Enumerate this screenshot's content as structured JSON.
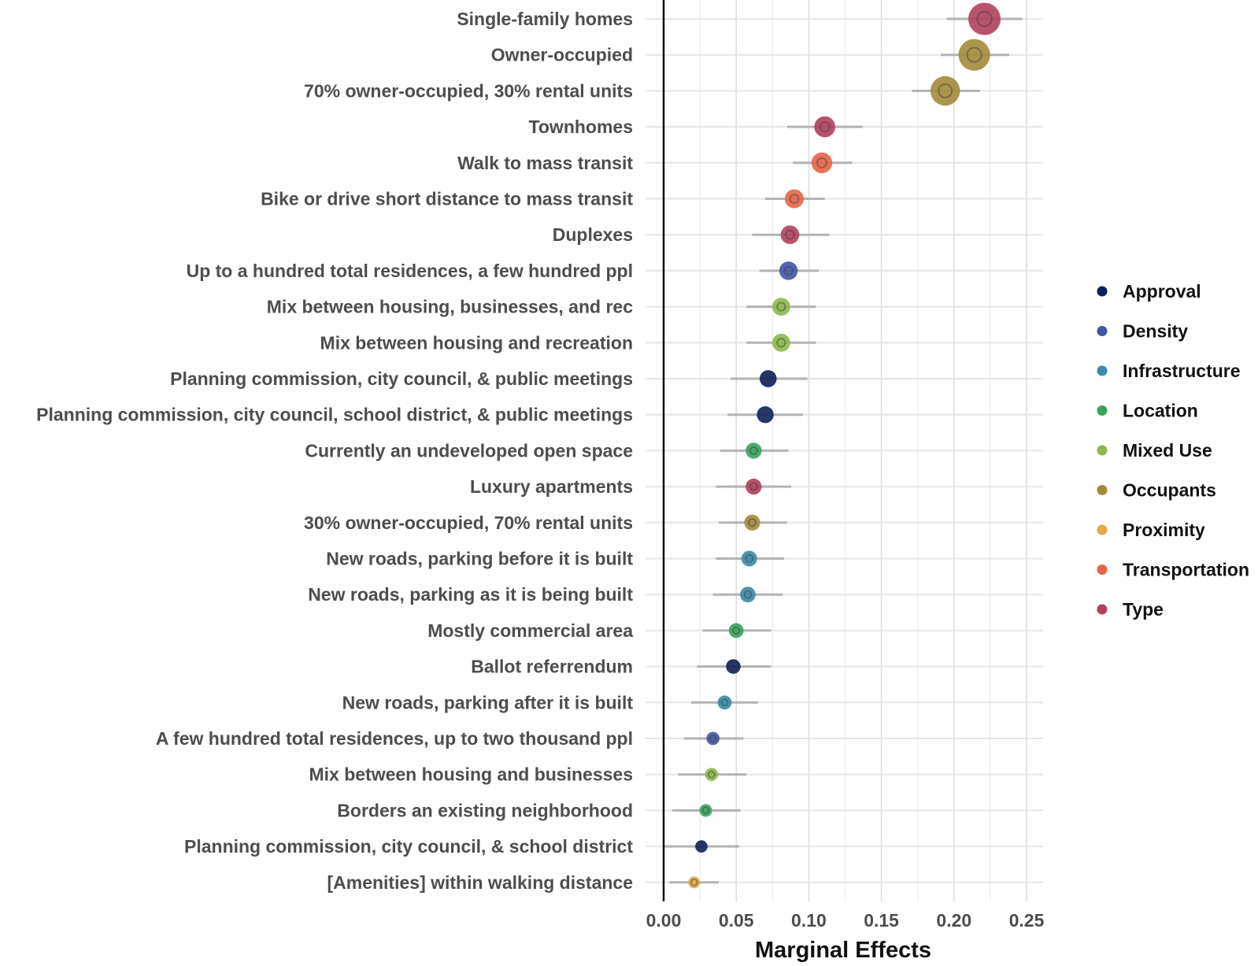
{
  "chart_data": {
    "type": "scatter",
    "subtype": "dot-and-whisker",
    "xlabel": "Marginal Effects",
    "xlim": [
      0,
      0.25
    ],
    "x_ticks": [
      "0.00",
      "0.05",
      "0.10",
      "0.15",
      "0.20",
      "0.25"
    ],
    "grid": true,
    "legend_position": "right",
    "legend": [
      {
        "name": "Approval",
        "color": "#0b1f5c"
      },
      {
        "name": "Density",
        "color": "#4056a6"
      },
      {
        "name": "Infrastructure",
        "color": "#3b8aa6"
      },
      {
        "name": "Location",
        "color": "#3aa35d"
      },
      {
        "name": "Mixed Use",
        "color": "#8cb84a"
      },
      {
        "name": "Occupants",
        "color": "#a3893a"
      },
      {
        "name": "Proximity",
        "color": "#e3ab44"
      },
      {
        "name": "Transportation",
        "color": "#e56447"
      },
      {
        "name": "Type",
        "color": "#b0405e"
      }
    ],
    "points": [
      {
        "label": "Single-family homes",
        "group": "Type",
        "value": 0.221,
        "ci": [
          0.195,
          0.247
        ]
      },
      {
        "label": "Owner-occupied",
        "group": "Occupants",
        "value": 0.214,
        "ci": [
          0.191,
          0.238
        ]
      },
      {
        "label": "70% owner-occupied, 30% rental units",
        "group": "Occupants",
        "value": 0.194,
        "ci": [
          0.171,
          0.218
        ]
      },
      {
        "label": "Townhomes",
        "group": "Type",
        "value": 0.111,
        "ci": [
          0.085,
          0.137
        ]
      },
      {
        "label": "Walk to mass transit",
        "group": "Transportation",
        "value": 0.109,
        "ci": [
          0.089,
          0.13
        ]
      },
      {
        "label": "Bike or drive short distance to mass transit",
        "group": "Transportation",
        "value": 0.09,
        "ci": [
          0.07,
          0.111
        ]
      },
      {
        "label": "Duplexes",
        "group": "Type",
        "value": 0.087,
        "ci": [
          0.061,
          0.114
        ]
      },
      {
        "label": "Up to a hundred total residences, a few hundred ppl",
        "group": "Density",
        "value": 0.086,
        "ci": [
          0.066,
          0.107
        ]
      },
      {
        "label": "Mix between housing, businesses, and rec",
        "group": "Mixed Use",
        "value": 0.081,
        "ci": [
          0.057,
          0.105
        ]
      },
      {
        "label": "Mix between housing and recreation",
        "group": "Mixed Use",
        "value": 0.081,
        "ci": [
          0.057,
          0.105
        ]
      },
      {
        "label": "Planning commission, city council, & public meetings",
        "group": "Approval",
        "value": 0.072,
        "ci": [
          0.046,
          0.099
        ]
      },
      {
        "label": "Planning commission, city council, school district, & public meetings",
        "group": "Approval",
        "value": 0.07,
        "ci": [
          0.044,
          0.096
        ]
      },
      {
        "label": "Currently an undeveloped open space",
        "group": "Location",
        "value": 0.062,
        "ci": [
          0.039,
          0.086
        ]
      },
      {
        "label": "Luxury apartments",
        "group": "Type",
        "value": 0.062,
        "ci": [
          0.036,
          0.088
        ]
      },
      {
        "label": "30% owner-occupied, 70% rental units",
        "group": "Occupants",
        "value": 0.061,
        "ci": [
          0.038,
          0.085
        ]
      },
      {
        "label": "New roads, parking before it is built",
        "group": "Infrastructure",
        "value": 0.059,
        "ci": [
          0.036,
          0.083
        ]
      },
      {
        "label": "New roads, parking as it is being built",
        "group": "Infrastructure",
        "value": 0.058,
        "ci": [
          0.034,
          0.082
        ]
      },
      {
        "label": "Mostly commercial area",
        "group": "Location",
        "value": 0.05,
        "ci": [
          0.027,
          0.074
        ]
      },
      {
        "label": "Ballot referrendum",
        "group": "Approval",
        "value": 0.048,
        "ci": [
          0.023,
          0.074
        ]
      },
      {
        "label": "New roads, parking after it is built",
        "group": "Infrastructure",
        "value": 0.042,
        "ci": [
          0.019,
          0.065
        ]
      },
      {
        "label": "A few hundred total residences, up to two thousand ppl",
        "group": "Density",
        "value": 0.034,
        "ci": [
          0.014,
          0.055
        ]
      },
      {
        "label": "Mix between housing and businesses",
        "group": "Mixed Use",
        "value": 0.033,
        "ci": [
          0.01,
          0.057
        ]
      },
      {
        "label": "Borders an existing neighborhood",
        "group": "Location",
        "value": 0.029,
        "ci": [
          0.006,
          0.053
        ]
      },
      {
        "label": "Planning commission, city council, & school district",
        "group": "Approval",
        "value": 0.026,
        "ci": [
          0.0,
          0.052
        ]
      },
      {
        "label": "[Amenities] within walking distance",
        "group": "Proximity",
        "value": 0.021,
        "ci": [
          0.004,
          0.038
        ]
      }
    ]
  }
}
